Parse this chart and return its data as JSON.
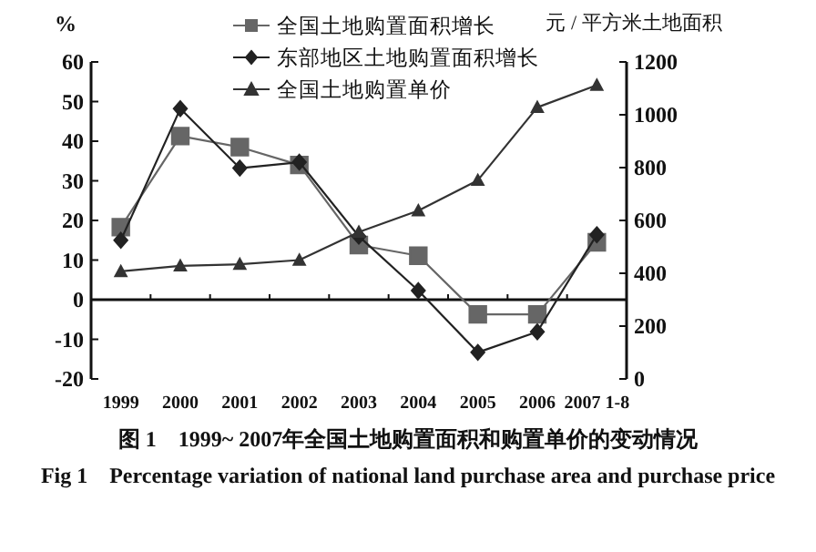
{
  "chart_data": {
    "type": "line",
    "categories": [
      "1999",
      "2000",
      "2001",
      "2002",
      "2003",
      "2004",
      "2005",
      "2006",
      "2007 1-8"
    ],
    "series": [
      {
        "name": "全国土地购置面积增长",
        "color": "#666666",
        "marker": "square",
        "values": [
          18.3,
          41.3,
          38.5,
          34,
          13.8,
          11.1,
          -3.7,
          -3.7,
          14.5
        ]
      },
      {
        "name": "东部地区土地购置面积增长",
        "color": "#222222",
        "marker": "diamond",
        "values": [
          15,
          48.2,
          33.2,
          34.7,
          16,
          2.3,
          -13.3,
          -8.1,
          16.4
        ]
      },
      {
        "name": "全国土地购置单价",
        "color": "#333333",
        "marker": "triangle",
        "axis": "y2",
        "values": [
          407,
          428,
          434,
          450,
          556,
          637,
          752,
          1028,
          1112
        ]
      }
    ],
    "ylabel": "%",
    "y2label": "元 / 平方米土地面积",
    "ylim": [
      -20,
      60
    ],
    "yticks": [
      -20,
      -10,
      0,
      10,
      20,
      30,
      40,
      50,
      60
    ],
    "y2lim": [
      0,
      1200
    ],
    "y2ticks": [
      0,
      200,
      400,
      600,
      800,
      1000,
      1200
    ],
    "legend": "top",
    "grid": false,
    "ref_lines": [
      {
        "axis": "y",
        "value": 0,
        "color": "#111111"
      }
    ],
    "annotations": [
      "图 1　1999~ 2007年全国土地购置面积和购置单价的变动情况",
      "Fig 1　Percentage variation of national land purchase area and purchase price"
    ]
  }
}
